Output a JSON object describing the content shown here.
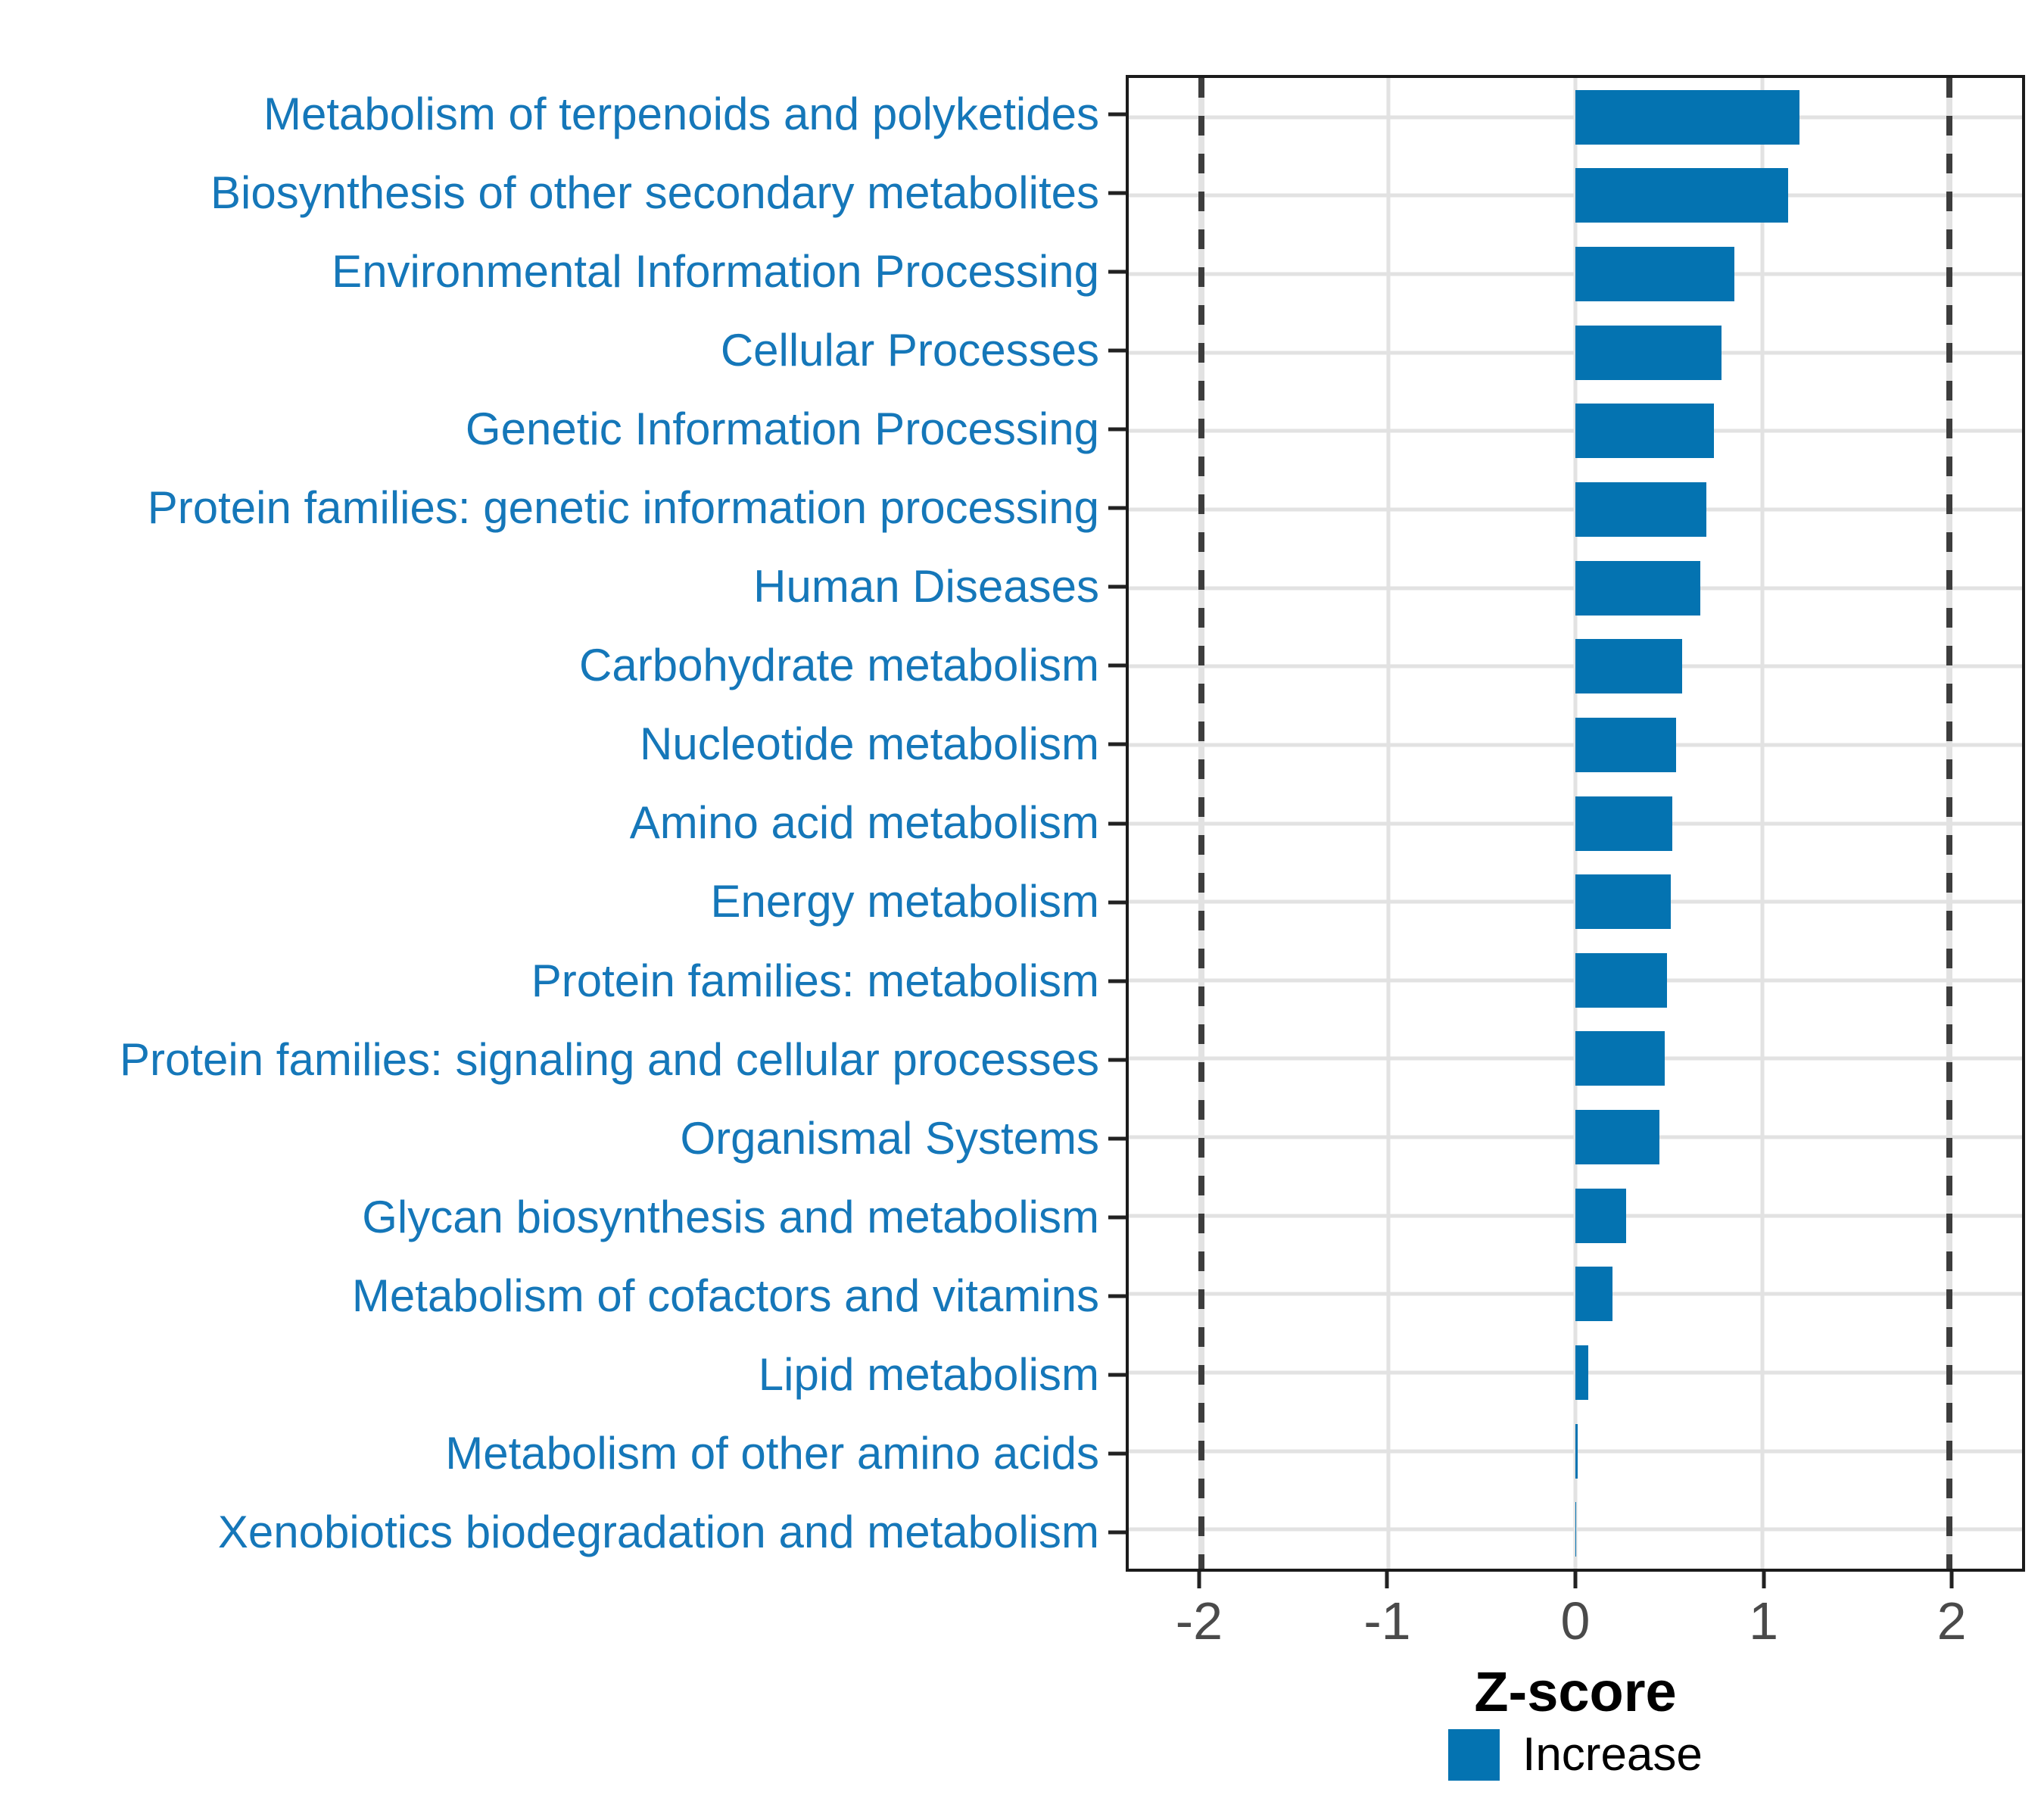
{
  "chart_data": {
    "type": "bar",
    "orientation": "horizontal",
    "title": "",
    "xlabel": "Z-score",
    "ylabel": "",
    "categories": [
      "Metabolism of terpenoids and polyketides",
      "Biosynthesis of other secondary metabolites",
      "Environmental Information Processing",
      "Cellular Processes",
      "Genetic Information Processing",
      "Protein families: genetic information processing",
      "Human Diseases",
      "Carbohydrate metabolism",
      "Nucleotide metabolism",
      "Amino acid metabolism",
      "Energy metabolism",
      "Protein families: metabolism",
      "Protein families: signaling and cellular processes",
      "Organismal Systems",
      "Glycan biosynthesis and metabolism",
      "Metabolism of cofactors and vitamins",
      "Lipid metabolism",
      "Metabolism of other amino acids",
      "Xenobiotics biodegradation and metabolism"
    ],
    "values": [
      1.2,
      1.14,
      0.85,
      0.78,
      0.74,
      0.7,
      0.67,
      0.57,
      0.54,
      0.52,
      0.51,
      0.49,
      0.48,
      0.45,
      0.27,
      0.2,
      0.07,
      0.013,
      0.006
    ],
    "series": [
      {
        "name": "Increase",
        "values": [
          1.2,
          1.14,
          0.85,
          0.78,
          0.74,
          0.7,
          0.67,
          0.57,
          0.54,
          0.52,
          0.51,
          0.49,
          0.48,
          0.45,
          0.27,
          0.2,
          0.07,
          0.013,
          0.006
        ]
      }
    ],
    "legend_label": "Increase",
    "legend_position": "bottom",
    "xlim": [
      -2.39,
      2.39
    ],
    "x_ticks": [
      -2,
      -1,
      0,
      1,
      2
    ],
    "x_tick_labels": [
      "-2",
      "-1",
      "0",
      "1",
      "2"
    ],
    "dashed_vlines": [
      -2,
      2
    ],
    "grid": true,
    "colors": {
      "bar": "#0473B1",
      "category_label": "#1577B9",
      "tick_label": "#4a4a4a",
      "gridline": "#e2e2e2",
      "dashed_line": "#3d3d3d",
      "panel_border": "#1b1b1b",
      "tick_mark": "#222222"
    }
  }
}
